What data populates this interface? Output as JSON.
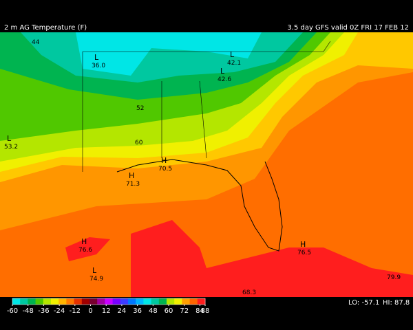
{
  "header": {
    "title": "2 m AG Temperature (F)",
    "valid": "3.5 day GFS valid 0Z FRI 17 FEB 12"
  },
  "map_labels": [
    {
      "text": "44"
    },
    {
      "symbol": "L",
      "text": "36.0"
    },
    {
      "symbol": "L",
      "text": "42.1"
    },
    {
      "symbol": "L",
      "text": "42.6"
    },
    {
      "text": "52"
    },
    {
      "symbol": "L",
      "text": "53.2"
    },
    {
      "text": "60"
    },
    {
      "symbol": "H",
      "text": "70.5"
    },
    {
      "symbol": "H",
      "text": "71.3"
    },
    {
      "symbol": "H",
      "text": "76.6"
    },
    {
      "symbol": "L",
      "text": "74.9"
    },
    {
      "symbol": "H",
      "text": "76.5"
    },
    {
      "text": "68.3"
    },
    {
      "text": "79.9"
    }
  ],
  "colorbar": {
    "range": [
      -60,
      88
    ],
    "ticks": [
      -60,
      -48,
      -36,
      -24,
      -12,
      0,
      12,
      24,
      36,
      48,
      60,
      72,
      84,
      88
    ],
    "colors": [
      "#00e6e6",
      "#00c8a0",
      "#00b450",
      "#50c800",
      "#b4e600",
      "#f0f000",
      "#ffb400",
      "#ff7800",
      "#e63200",
      "#a00000",
      "#780030",
      "#a000a0",
      "#c800ff",
      "#7800ff",
      "#3c3cff",
      "#0078ff",
      "#00b4ff",
      "#00e6e6",
      "#00c8a0",
      "#00b450",
      "#b4e600",
      "#f0f000",
      "#ffa000",
      "#ff6400",
      "#ff1e1e"
    ]
  },
  "stats": {
    "lo": "LO: -57.1",
    "hi": "HI: 87.8"
  }
}
